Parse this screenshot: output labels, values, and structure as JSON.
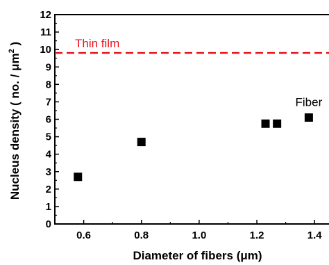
{
  "chart_data": {
    "type": "scatter",
    "xlabel": "Diameter of fibers (μm)",
    "ylabel_main": "Nucleus density ( no. / μm",
    "ylabel_sup": "2",
    "ylabel_end": ")",
    "xlim": [
      0.5,
      1.45
    ],
    "ylim": [
      0,
      12
    ],
    "x_ticks": [
      0.6,
      0.8,
      1.0,
      1.2,
      1.4
    ],
    "x_tick_labels": [
      "0.6",
      "0.8",
      "1.0",
      "1.2",
      "1.4"
    ],
    "y_ticks": [
      0,
      1,
      2,
      3,
      4,
      5,
      6,
      7,
      8,
      9,
      10,
      11,
      12
    ],
    "y_tick_labels": [
      "0",
      "1",
      "2",
      "3",
      "4",
      "5",
      "6",
      "7",
      "8",
      "9",
      "10",
      "11",
      "12"
    ],
    "grid": false,
    "series": [
      {
        "name": "Fiber",
        "marker": "square",
        "color": "#000000",
        "points": [
          {
            "x": 0.58,
            "y": 2.7
          },
          {
            "x": 0.8,
            "y": 4.7
          },
          {
            "x": 1.23,
            "y": 5.75
          },
          {
            "x": 1.27,
            "y": 5.75
          },
          {
            "x": 1.38,
            "y": 6.1
          }
        ]
      }
    ],
    "reference_line": {
      "label": "Thin film",
      "y": 9.8,
      "color": "#e8141b",
      "style": "dashed"
    },
    "annotations": [
      {
        "text": "Fiber",
        "x": 1.38,
        "y": 7.0
      }
    ]
  }
}
